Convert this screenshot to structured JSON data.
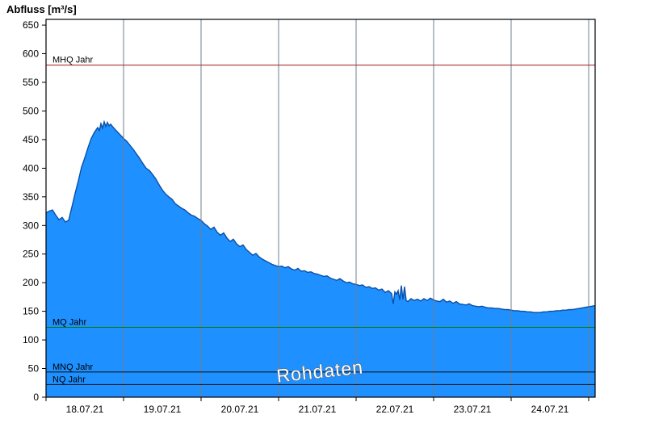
{
  "title": "Abfluss [m³/s]",
  "watermark": "Rohdaten",
  "chart_data": {
    "type": "area",
    "title": "Abfluss [m³/s]",
    "ylabel": "Abfluss [m³/s]",
    "xlabel": "",
    "ylim": [
      0,
      660
    ],
    "y_tick_step": 50,
    "y_ticks": [
      0,
      50,
      100,
      150,
      200,
      250,
      300,
      350,
      400,
      450,
      500,
      550,
      600,
      650
    ],
    "x_hours": [
      0,
      170
    ],
    "x_day_labels": [
      "18.07.21",
      "19.07.21",
      "20.07.21",
      "21.07.21",
      "22.07.21",
      "23.07.21",
      "24.07.21"
    ],
    "grid": "vertical-daily",
    "legend_position": "none",
    "watermark": "Rohdaten",
    "reference_lines": [
      {
        "label": "MHQ Jahr",
        "value": 580,
        "color": "#a83232"
      },
      {
        "label": "MQ Jahr",
        "value": 122,
        "color": "#008000"
      },
      {
        "label": "MNQ Jahr",
        "value": 44,
        "color": "#101828"
      },
      {
        "label": "NQ Jahr",
        "value": 22,
        "color": "#101828"
      }
    ],
    "colors": {
      "fill": "#1e90ff",
      "stroke": "#0a4fa8",
      "grid": "#6f7f8f",
      "frame": "#000000",
      "tick_text": "#000000"
    },
    "series": [
      {
        "name": "Abfluss Rohdaten",
        "unit": "m³/s",
        "points": [
          [
            0,
            322
          ],
          [
            1,
            325
          ],
          [
            2,
            327
          ],
          [
            3,
            318
          ],
          [
            4,
            310
          ],
          [
            5,
            314
          ],
          [
            6,
            306
          ],
          [
            7,
            309
          ],
          [
            8,
            332
          ],
          [
            9,
            356
          ],
          [
            10,
            378
          ],
          [
            11,
            402
          ],
          [
            12,
            418
          ],
          [
            13,
            436
          ],
          [
            14,
            452
          ],
          [
            15,
            463
          ],
          [
            16,
            471
          ],
          [
            16.5,
            466
          ],
          [
            17,
            478
          ],
          [
            17.5,
            470
          ],
          [
            18,
            481
          ],
          [
            18.5,
            473
          ],
          [
            19,
            480
          ],
          [
            19.5,
            474
          ],
          [
            20,
            477
          ],
          [
            21,
            470
          ],
          [
            22,
            464
          ],
          [
            23,
            458
          ],
          [
            24,
            452
          ],
          [
            25,
            447
          ],
          [
            26,
            440
          ],
          [
            27,
            433
          ],
          [
            28,
            425
          ],
          [
            29,
            417
          ],
          [
            30,
            408
          ],
          [
            31,
            400
          ],
          [
            32,
            396
          ],
          [
            33,
            389
          ],
          [
            34,
            381
          ],
          [
            35,
            371
          ],
          [
            36,
            362
          ],
          [
            37,
            355
          ],
          [
            38,
            350
          ],
          [
            39,
            346
          ],
          [
            40,
            338
          ],
          [
            41,
            334
          ],
          [
            42,
            330
          ],
          [
            43,
            327
          ],
          [
            44,
            322
          ],
          [
            45,
            318
          ],
          [
            46,
            316
          ],
          [
            47,
            312
          ],
          [
            48,
            309
          ],
          [
            49,
            303
          ],
          [
            50,
            299
          ],
          [
            51,
            293
          ],
          [
            52,
            297
          ],
          [
            53,
            288
          ],
          [
            54,
            283
          ],
          [
            55,
            287
          ],
          [
            56,
            278
          ],
          [
            57,
            272
          ],
          [
            58,
            276
          ],
          [
            59,
            268
          ],
          [
            60,
            263
          ],
          [
            61,
            266
          ],
          [
            62,
            258
          ],
          [
            63,
            253
          ],
          [
            64,
            248
          ],
          [
            65,
            251
          ],
          [
            66,
            245
          ],
          [
            67,
            241
          ],
          [
            68,
            238
          ],
          [
            69,
            235
          ],
          [
            70,
            232
          ],
          [
            71,
            230
          ],
          [
            72,
            228
          ],
          [
            73,
            229
          ],
          [
            74,
            226
          ],
          [
            75,
            228
          ],
          [
            76,
            224
          ],
          [
            77,
            222
          ],
          [
            78,
            225
          ],
          [
            79,
            220
          ],
          [
            80,
            221
          ],
          [
            81,
            218
          ],
          [
            82,
            219
          ],
          [
            83,
            216
          ],
          [
            84,
            215
          ],
          [
            85,
            213
          ],
          [
            86,
            211
          ],
          [
            87,
            212
          ],
          [
            88,
            208
          ],
          [
            89,
            206
          ],
          [
            90,
            204
          ],
          [
            91,
            207
          ],
          [
            92,
            203
          ],
          [
            93,
            200
          ],
          [
            94,
            201
          ],
          [
            95,
            198
          ],
          [
            96,
            197
          ],
          [
            97,
            195
          ],
          [
            98,
            196
          ],
          [
            99,
            192
          ],
          [
            100,
            193
          ],
          [
            101,
            190
          ],
          [
            102,
            191
          ],
          [
            103,
            187
          ],
          [
            104,
            189
          ],
          [
            105,
            183
          ],
          [
            106,
            186
          ],
          [
            107,
            181
          ],
          [
            107.5,
            163
          ],
          [
            108,
            184
          ],
          [
            108.5,
            180
          ],
          [
            109,
            186
          ],
          [
            109.5,
            170
          ],
          [
            110,
            195
          ],
          [
            110.5,
            171
          ],
          [
            111,
            193
          ],
          [
            111.5,
            169
          ],
          [
            112,
            167
          ],
          [
            113,
            172
          ],
          [
            114,
            169
          ],
          [
            115,
            171
          ],
          [
            116,
            168
          ],
          [
            117,
            172
          ],
          [
            118,
            169
          ],
          [
            119,
            173
          ],
          [
            120,
            170
          ],
          [
            121,
            168
          ],
          [
            122,
            167
          ],
          [
            123,
            171
          ],
          [
            124,
            166
          ],
          [
            125,
            168
          ],
          [
            126,
            164
          ],
          [
            127,
            167
          ],
          [
            128,
            163
          ],
          [
            129,
            162
          ],
          [
            130,
            161
          ],
          [
            131,
            163
          ],
          [
            132,
            160
          ],
          [
            133,
            159
          ],
          [
            134,
            158
          ],
          [
            135,
            159
          ],
          [
            136,
            157
          ],
          [
            137,
            156
          ],
          [
            138,
            156
          ],
          [
            139,
            155
          ],
          [
            140,
            155
          ],
          [
            141,
            154
          ],
          [
            142,
            153
          ],
          [
            143,
            153
          ],
          [
            144,
            152
          ],
          [
            145,
            151
          ],
          [
            146,
            151
          ],
          [
            147,
            150
          ],
          [
            148,
            150
          ],
          [
            149,
            149
          ],
          [
            150,
            149
          ],
          [
            151,
            148
          ],
          [
            152,
            148
          ],
          [
            153,
            148
          ],
          [
            154,
            149
          ],
          [
            155,
            149
          ],
          [
            156,
            150
          ],
          [
            157,
            150
          ],
          [
            158,
            151
          ],
          [
            159,
            151
          ],
          [
            160,
            152
          ],
          [
            161,
            152
          ],
          [
            162,
            153
          ],
          [
            163,
            153
          ],
          [
            164,
            154
          ],
          [
            165,
            155
          ],
          [
            166,
            156
          ],
          [
            167,
            157
          ],
          [
            168,
            158
          ],
          [
            169,
            159
          ],
          [
            170,
            160
          ]
        ]
      }
    ]
  }
}
